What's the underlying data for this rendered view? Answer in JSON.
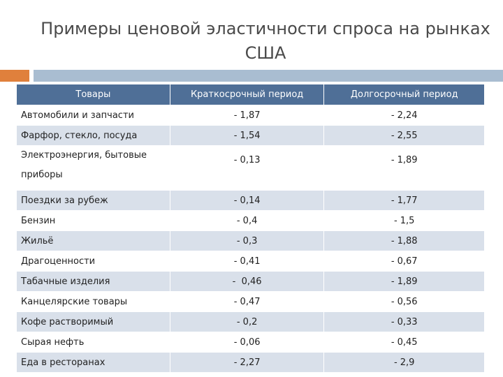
{
  "title_line1": "Примеры ценовой эластичности спроса на рынках",
  "title_line2": "США",
  "table": {
    "headers": [
      "Товары",
      "Краткосрочный период",
      "Долгосрочный период"
    ],
    "rows": [
      [
        "Автомобили и запчасти",
        "- 1,87",
        "- 2,24"
      ],
      [
        "Фарфор, стекло, посуда",
        "- 1,54",
        "- 2,55"
      ],
      [
        "Электроэнергия, бытовые приборы",
        "- 0,13",
        "- 1,89"
      ],
      [
        "Поездки за рубеж",
        "- 0,14",
        "- 1,77"
      ],
      [
        "Бензин",
        "- 0,4",
        "- 1,5"
      ],
      [
        "Жильё",
        "- 0,3",
        "- 1,88"
      ],
      [
        "Драгоценности",
        "- 0,41",
        "- 0,67"
      ],
      [
        "Табачные изделия",
        "-  0,46",
        "- 1,89"
      ],
      [
        "Канцелярские товары",
        "- 0,47",
        "- 0,56"
      ],
      [
        "Кофе растворимый",
        "- 0,2",
        "- 0,33"
      ],
      [
        "Сырая нефть",
        "- 0,06",
        "- 0,45"
      ],
      [
        "Еда в ресторанах",
        "- 2,27",
        "- 2,9"
      ]
    ]
  }
}
